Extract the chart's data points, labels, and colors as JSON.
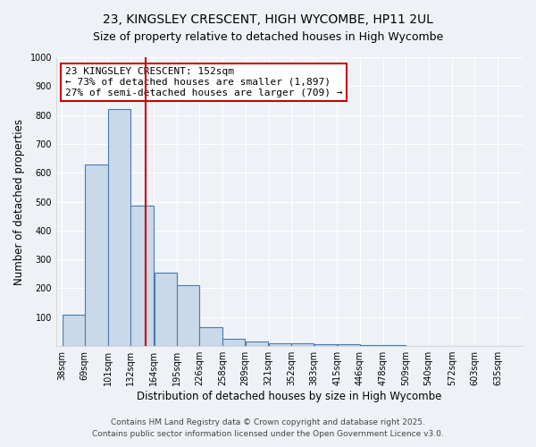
{
  "title_line1": "23, KINGSLEY CRESCENT, HIGH WYCOMBE, HP11 2UL",
  "title_line2": "Size of property relative to detached houses in High Wycombe",
  "xlabel": "Distribution of detached houses by size in High Wycombe",
  "ylabel": "Number of detached properties",
  "bar_edges": [
    38,
    69,
    101,
    132,
    164,
    195,
    226,
    258,
    289,
    321,
    352,
    383,
    415,
    446,
    478,
    509,
    540,
    572,
    603,
    635,
    666
  ],
  "bar_heights": [
    110,
    630,
    820,
    485,
    255,
    210,
    65,
    25,
    15,
    10,
    10,
    5,
    5,
    3,
    2,
    1,
    1,
    0,
    0,
    0
  ],
  "bar_color": "#c9d9ea",
  "bar_edge_color": "#4a7aab",
  "red_line_x": 152,
  "annotation_text": "23 KINGSLEY CRESCENT: 152sqm\n← 73% of detached houses are smaller (1,897)\n27% of semi-detached houses are larger (709) →",
  "annotation_box_color": "#ffffff",
  "annotation_box_edge": "#cc0000",
  "ylim": [
    0,
    1000
  ],
  "yticks": [
    0,
    100,
    200,
    300,
    400,
    500,
    600,
    700,
    800,
    900,
    1000
  ],
  "footer_line1": "Contains HM Land Registry data © Crown copyright and database right 2025.",
  "footer_line2": "Contains public sector information licensed under the Open Government Licence v3.0.",
  "background_color": "#eef2f7",
  "grid_color": "#ffffff",
  "title_fontsize": 10,
  "subtitle_fontsize": 9,
  "tick_label_fontsize": 7,
  "axis_label_fontsize": 8.5,
  "annotation_fontsize": 8,
  "footer_fontsize": 6.5
}
